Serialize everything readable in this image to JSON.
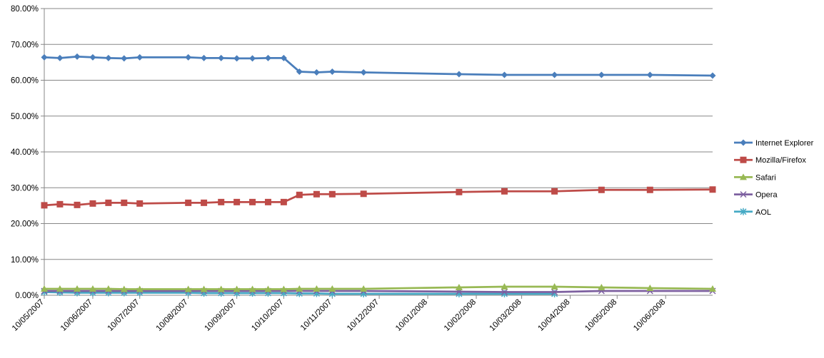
{
  "chart_data": {
    "type": "line",
    "title": "",
    "xlabel": "",
    "ylabel": "",
    "ylim": [
      0,
      80
    ],
    "y_ticks": [
      "0.00%",
      "10.00%",
      "20.00%",
      "30.00%",
      "40.00%",
      "50.00%",
      "60.00%",
      "70.00%",
      "80.00%"
    ],
    "x_ticks": [
      "10/05/2007",
      "10/06/2007",
      "10/07/2007",
      "10/08/2007",
      "10/09/2007",
      "10/10/2007",
      "10/11/2007",
      "10/12/2007",
      "10/01/2008",
      "10/02/2008",
      "10/03/2008",
      "10/04/2008",
      "10/05/2008",
      "10/06/2008"
    ],
    "x_range": [
      "2007-05-10",
      "2008-07-10"
    ],
    "grid": "horizontal",
    "legend_position": "right",
    "x": [
      "2007-05-10",
      "2007-05-20",
      "2007-05-31",
      "2007-06-10",
      "2007-06-20",
      "2007-06-30",
      "2007-07-10",
      "2007-08-10",
      "2007-08-20",
      "2007-08-31",
      "2007-09-10",
      "2007-09-20",
      "2007-09-30",
      "2007-10-10",
      "2007-10-20",
      "2007-10-31",
      "2007-11-10",
      "2007-11-30",
      "2008-01-30",
      "2008-02-28",
      "2008-03-31",
      "2008-04-30",
      "2008-05-31",
      "2008-07-10"
    ],
    "series": [
      {
        "name": "Internet Explorer",
        "color": "#4A7EBB",
        "marker": "diamond",
        "values": [
          66.4,
          66.2,
          66.6,
          66.4,
          66.2,
          66.1,
          66.4,
          66.4,
          66.2,
          66.2,
          66.1,
          66.1,
          66.2,
          66.2,
          62.4,
          62.2,
          62.4,
          62.2,
          61.7,
          61.5,
          61.5,
          61.5,
          61.5,
          61.3
        ]
      },
      {
        "name": "Mozilla/Firefox",
        "color": "#BE4B48",
        "marker": "square",
        "values": [
          25.1,
          25.4,
          25.2,
          25.6,
          25.8,
          25.8,
          25.6,
          25.8,
          25.8,
          26.0,
          26.0,
          26.0,
          26.0,
          26.0,
          28.0,
          28.2,
          28.2,
          28.3,
          28.8,
          29.0,
          29.0,
          29.4,
          29.4,
          29.5
        ]
      },
      {
        "name": "Safari",
        "color": "#98B954",
        "marker": "triangle",
        "values": [
          1.8,
          1.8,
          1.8,
          1.8,
          1.8,
          1.7,
          1.7,
          1.7,
          1.7,
          1.7,
          1.7,
          1.7,
          1.7,
          1.7,
          1.8,
          1.8,
          1.8,
          1.8,
          2.2,
          2.4,
          2.4,
          2.2,
          2.0,
          1.8
        ]
      },
      {
        "name": "Opera",
        "color": "#7D60A0",
        "marker": "x",
        "values": [
          1.2,
          1.2,
          1.2,
          1.2,
          1.2,
          1.2,
          1.2,
          1.2,
          1.2,
          1.2,
          1.2,
          1.2,
          1.2,
          1.2,
          1.2,
          1.2,
          1.2,
          1.2,
          1.0,
          0.9,
          0.9,
          1.2,
          1.2,
          1.2
        ]
      },
      {
        "name": "AOL",
        "color": "#46AAC5",
        "marker": "asterisk",
        "values": [
          0.9,
          0.8,
          0.7,
          0.7,
          0.7,
          0.7,
          0.7,
          0.7,
          0.6,
          0.6,
          0.6,
          0.6,
          0.6,
          0.6,
          0.5,
          0.5,
          0.4,
          0.4,
          0.4,
          0.4,
          0.4,
          null,
          null,
          null
        ]
      }
    ]
  }
}
